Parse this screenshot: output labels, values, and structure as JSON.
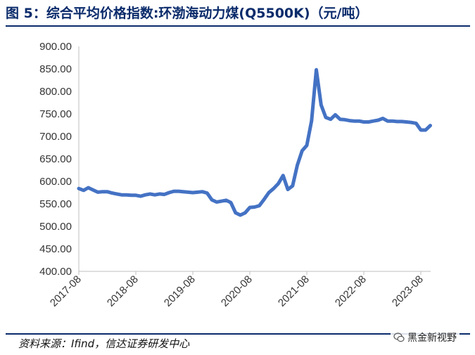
{
  "header": {
    "title": "图 5：综合平均价格指数:环渤海动力煤(Q5500K)（元/吨）"
  },
  "footer": {
    "source": "资料来源：Ifind，信达证券研发中心",
    "watermark": "黑金新视野",
    "watermark_icon": "wechat-icon"
  },
  "chart_data": {
    "type": "line",
    "title": "综合平均价格指数:环渤海动力煤(Q5500K)（元/吨）",
    "xlabel": "",
    "ylabel": "",
    "ylim": [
      400,
      900
    ],
    "xlim": [
      "2017-08",
      "2023-10"
    ],
    "y_ticks": [
      "400.00",
      "450.00",
      "500.00",
      "550.00",
      "600.00",
      "650.00",
      "700.00",
      "750.00",
      "800.00",
      "850.00",
      "900.00"
    ],
    "x_ticks": [
      "2017-08",
      "2018-08",
      "2019-08",
      "2020-08",
      "2021-08",
      "2022-08",
      "2023-08"
    ],
    "grid": false,
    "legend": "none",
    "colors": {
      "line": "#4472c4",
      "axis": "#bfbfbf"
    },
    "series": [
      {
        "x": [
          "2017-08",
          "2017-09",
          "2017-10",
          "2017-11",
          "2017-12",
          "2018-01",
          "2018-02",
          "2018-03",
          "2018-04",
          "2018-05",
          "2018-06",
          "2018-07",
          "2018-08",
          "2018-09",
          "2018-10",
          "2018-11",
          "2018-12",
          "2019-01",
          "2019-02",
          "2019-03",
          "2019-04",
          "2019-05",
          "2019-06",
          "2019-07",
          "2019-08",
          "2019-09",
          "2019-10",
          "2019-11",
          "2019-12",
          "2020-01",
          "2020-02",
          "2020-03",
          "2020-04",
          "2020-05",
          "2020-06",
          "2020-07",
          "2020-08",
          "2020-09",
          "2020-10",
          "2020-11",
          "2020-12",
          "2021-01",
          "2021-02",
          "2021-03",
          "2021-04",
          "2021-05",
          "2021-06",
          "2021-07",
          "2021-08",
          "2021-09",
          "2021-10",
          "2021-11",
          "2021-12",
          "2022-01",
          "2022-02",
          "2022-03",
          "2022-04",
          "2022-05",
          "2022-06",
          "2022-07",
          "2022-08",
          "2022-09",
          "2022-10",
          "2022-11",
          "2022-12",
          "2023-01",
          "2023-02",
          "2023-03",
          "2023-04",
          "2023-05",
          "2023-06",
          "2023-07",
          "2023-08",
          "2023-09",
          "2023-10"
        ],
        "values": [
          584,
          580,
          586,
          581,
          576,
          577,
          577,
          574,
          572,
          570,
          570,
          569,
          569,
          567,
          570,
          572,
          570,
          572,
          571,
          575,
          578,
          578,
          577,
          576,
          575,
          576,
          577,
          574,
          559,
          554,
          556,
          558,
          553,
          530,
          525,
          530,
          542,
          543,
          546,
          560,
          575,
          584,
          595,
          613,
          582,
          590,
          636,
          668,
          680,
          735,
          848,
          770,
          742,
          738,
          748,
          738,
          737,
          735,
          734,
          734,
          732,
          732,
          734,
          736,
          740,
          734,
          734,
          733,
          733,
          732,
          731,
          729,
          714,
          714,
          724
        ]
      }
    ]
  }
}
